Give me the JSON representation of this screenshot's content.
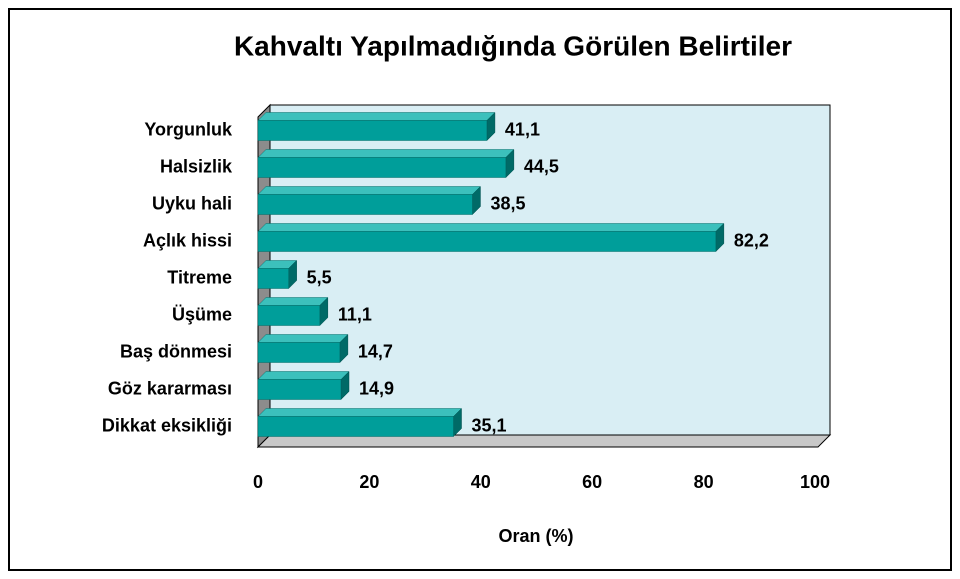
{
  "chart_data": {
    "type": "bar",
    "orientation": "horizontal",
    "title": "Kahvaltı Yapılmadığında Görülen Belirtiler",
    "x_label": "Oran (%)",
    "categories": [
      "Yorgunluk",
      "Halsizlik",
      "Uyku hali",
      "Açlık hissi",
      "Titreme",
      "Üşüme",
      "Baş dönmesi",
      "Göz kararması",
      "Dikkat eksikliği"
    ],
    "values": [
      41.1,
      44.5,
      38.5,
      82.2,
      5.5,
      11.1,
      14.7,
      14.9,
      35.1
    ],
    "value_labels": [
      "41,1",
      "44,5",
      "38,5",
      "82,2",
      "5,5",
      "11,1",
      "14,7",
      "14,9",
      "35,1"
    ],
    "color": "#009e9a",
    "xlim": [
      0,
      100
    ],
    "xticks": [
      0,
      20,
      40,
      60,
      80,
      100
    ],
    "grid": false
  }
}
